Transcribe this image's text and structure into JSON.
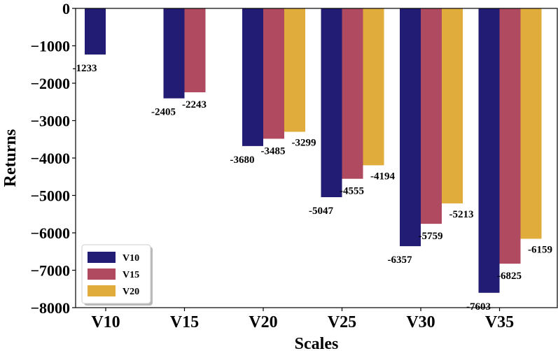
{
  "chart_data": {
    "type": "bar",
    "xlabel": "Scales",
    "ylabel": "Returns",
    "categories": [
      "V10",
      "V15",
      "V20",
      "V25",
      "V30",
      "V35"
    ],
    "series": [
      {
        "name": "V10",
        "color": "#221c74",
        "values": [
          -1233,
          -2405,
          -3680,
          -5047,
          -6357,
          -7603
        ]
      },
      {
        "name": "V15",
        "color": "#b04a60",
        "values": [
          null,
          -2243,
          -3485,
          -4555,
          -5759,
          -6825
        ]
      },
      {
        "name": "V20",
        "color": "#e0ac3c",
        "values": [
          null,
          null,
          -3299,
          -4194,
          -5213,
          -6159
        ]
      }
    ],
    "yticks": [
      0,
      -1000,
      -2000,
      -3000,
      -4000,
      -5000,
      -6000,
      -7000,
      -8000
    ],
    "yticklabels": [
      "0",
      "−1000",
      "−2000",
      "−3000",
      "−4000",
      "−5000",
      "−6000",
      "−7000",
      "−8000"
    ],
    "ylim": [
      -8000,
      0
    ],
    "legend_position": "lower-left",
    "grid": false
  }
}
